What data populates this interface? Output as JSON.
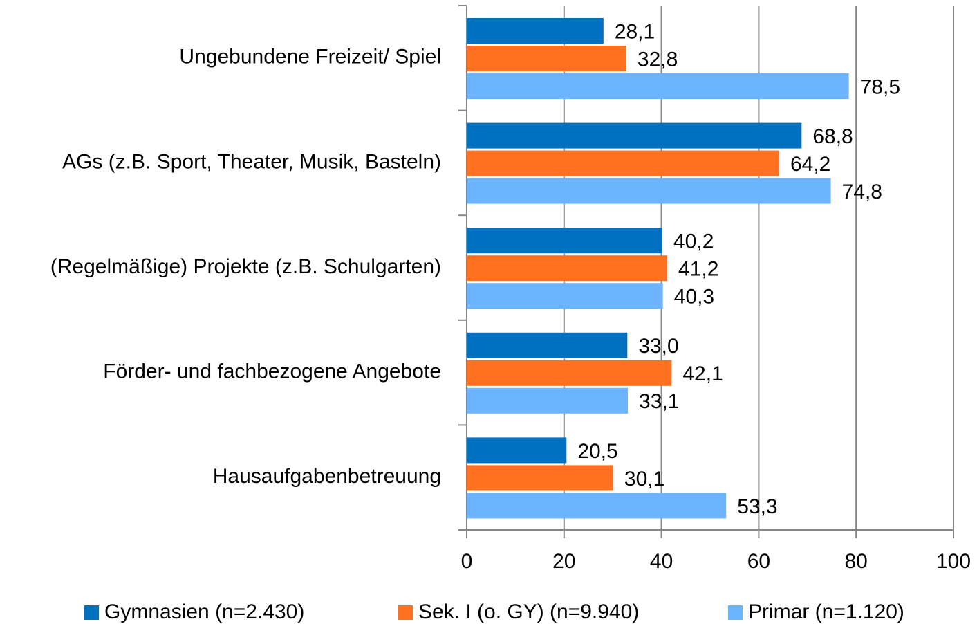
{
  "chart_data": {
    "type": "bar",
    "orientation": "horizontal",
    "categories": [
      "Ungebundene Freizeit/ Spiel",
      "AGs (z.B. Sport, Theater, Musik, Basteln)",
      "(Regelmäßige) Projekte (z.B. Schulgarten)",
      "Förder- und fachbezogene Angebote",
      "Hausaufgabenbetreuung"
    ],
    "series": [
      {
        "name": "Gymnasien (n=2.430)",
        "color": "#0070c0",
        "values": [
          28.1,
          68.8,
          40.2,
          33.0,
          20.5
        ],
        "value_labels": [
          "28,1",
          "68,8",
          "40,2",
          "33,0",
          "20,5"
        ]
      },
      {
        "name": "Sek. I (o. GY) (n=9.940)",
        "color": "#ff7020",
        "values": [
          32.8,
          64.2,
          41.2,
          42.1,
          30.1
        ],
        "value_labels": [
          "32,8",
          "64,2",
          "41,2",
          "42,1",
          "30,1"
        ]
      },
      {
        "name": "Primar (n=1.120)",
        "color": "#6cb4ff",
        "values": [
          78.5,
          74.8,
          40.3,
          33.1,
          53.3
        ],
        "value_labels": [
          "78,5",
          "74,8",
          "40,3",
          "33,1",
          "53,3"
        ]
      }
    ],
    "xlim": [
      0,
      100
    ],
    "xticks": [
      0,
      20,
      40,
      60,
      80,
      100
    ],
    "grid": true,
    "legend": "bottom"
  }
}
